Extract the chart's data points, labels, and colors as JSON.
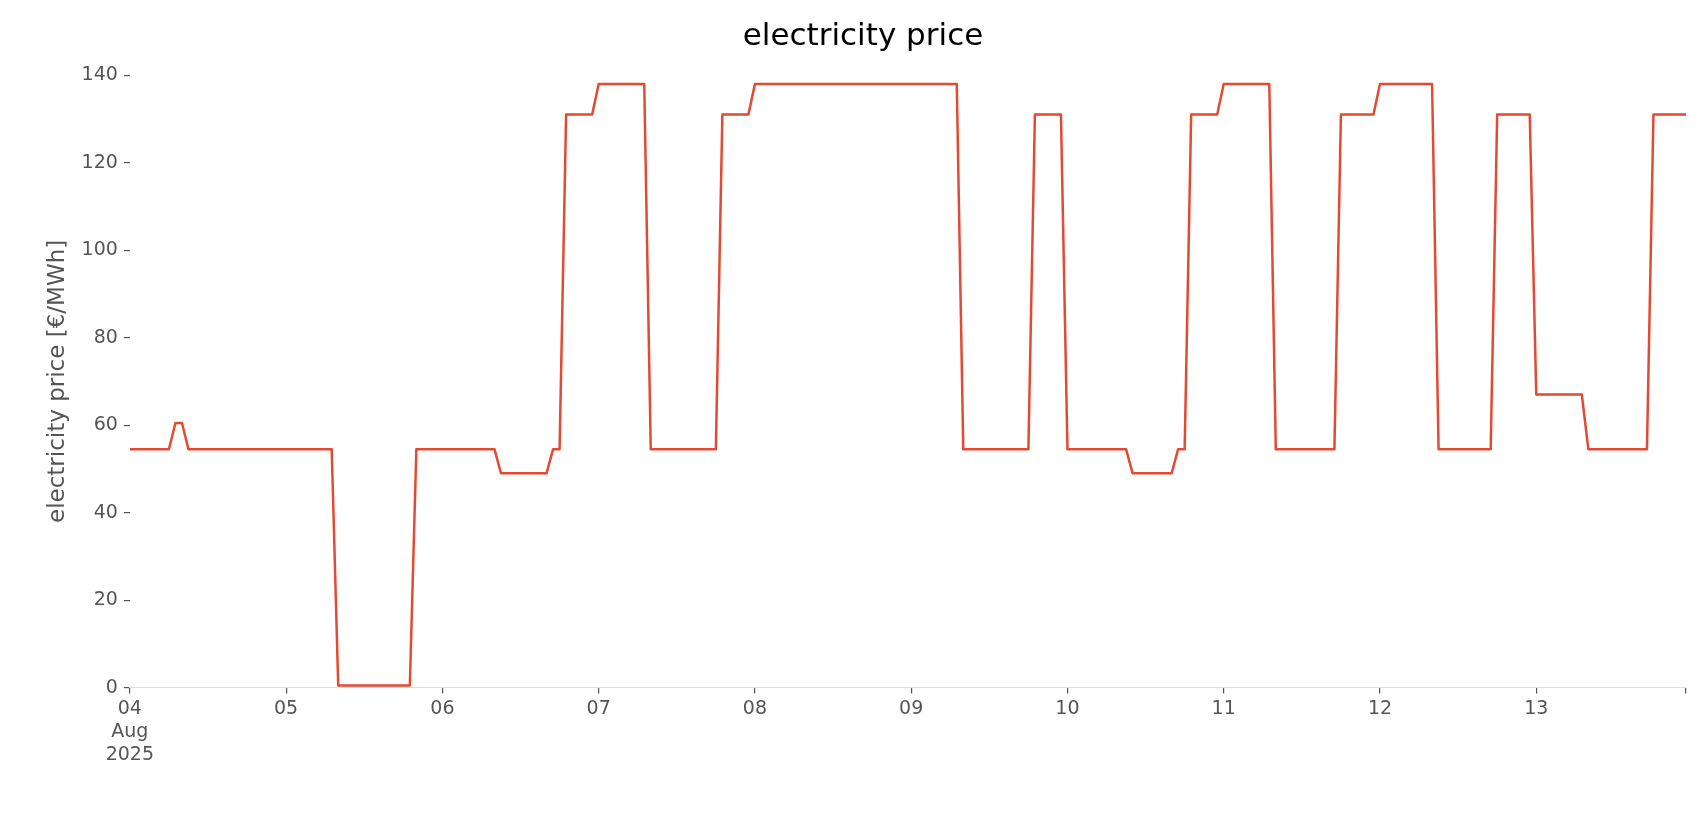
{
  "chart_data": {
    "type": "line",
    "title": "electricity price",
    "ylabel": "electricity price [€/MWh]",
    "x": [
      "2025-08-04T00:00",
      "2025-08-04T06:00",
      "2025-08-04T07:00",
      "2025-08-04T08:00",
      "2025-08-04T09:00",
      "2025-08-05T07:00",
      "2025-08-05T08:00",
      "2025-08-05T19:00",
      "2025-08-05T20:00",
      "2025-08-06T08:00",
      "2025-08-06T09:00",
      "2025-08-06T16:00",
      "2025-08-06T17:00",
      "2025-08-06T18:00",
      "2025-08-06T19:00",
      "2025-08-06T23:00",
      "2025-08-07T00:00",
      "2025-08-07T07:00",
      "2025-08-07T08:00",
      "2025-08-07T18:00",
      "2025-08-07T19:00",
      "2025-08-07T23:00",
      "2025-08-08T00:00",
      "2025-08-09T07:00",
      "2025-08-09T08:00",
      "2025-08-09T18:00",
      "2025-08-09T19:00",
      "2025-08-09T23:00",
      "2025-08-10T00:00",
      "2025-08-10T09:00",
      "2025-08-10T10:00",
      "2025-08-10T16:00",
      "2025-08-10T17:00",
      "2025-08-10T18:00",
      "2025-08-10T19:00",
      "2025-08-10T23:00",
      "2025-08-11T00:00",
      "2025-08-11T07:00",
      "2025-08-11T08:00",
      "2025-08-11T17:00",
      "2025-08-11T18:00",
      "2025-08-11T23:00",
      "2025-08-12T00:00",
      "2025-08-12T08:00",
      "2025-08-12T09:00",
      "2025-08-12T17:00",
      "2025-08-12T18:00",
      "2025-08-12T23:00",
      "2025-08-13T00:00",
      "2025-08-13T07:00",
      "2025-08-13T08:00",
      "2025-08-13T17:00",
      "2025-08-13T18:00",
      "2025-08-13T23:00"
    ],
    "series": [
      {
        "color": "#e24a33",
        "values": [
          54.5,
          54.5,
          60.5,
          60.5,
          54.5,
          54.5,
          0.5,
          0.5,
          54.5,
          54.5,
          49,
          49,
          54.5,
          54.5,
          131,
          131,
          138,
          138,
          54.5,
          54.5,
          131,
          131,
          138,
          138,
          54.5,
          54.5,
          131,
          131,
          54.5,
          54.5,
          49,
          49,
          54.5,
          54.5,
          131,
          131,
          138,
          138,
          54.5,
          54.5,
          131,
          131,
          138,
          138,
          54.5,
          54.5,
          131,
          131,
          67,
          67,
          54.5,
          54.5,
          131,
          131
        ]
      }
    ],
    "xticks": [
      {
        "value": "2025-08-04",
        "label": "04\nAug\n2025"
      },
      {
        "value": "2025-08-05",
        "label": "05"
      },
      {
        "value": "2025-08-06",
        "label": "06"
      },
      {
        "value": "2025-08-07",
        "label": "07"
      },
      {
        "value": "2025-08-08",
        "label": "08"
      },
      {
        "value": "2025-08-09",
        "label": "09"
      },
      {
        "value": "2025-08-10",
        "label": "10"
      },
      {
        "value": "2025-08-11",
        "label": "11"
      },
      {
        "value": "2025-08-12",
        "label": "12"
      },
      {
        "value": "2025-08-13",
        "label": "13"
      },
      {
        "value": "2025-08-13T23:00",
        "label": null
      }
    ],
    "xlim": [
      "2025-08-04T00:00",
      "2025-08-13T23:00"
    ],
    "ylim": [
      0,
      140
    ],
    "yticks": [
      0,
      20,
      40,
      60,
      80,
      100,
      120,
      140
    ],
    "legend": false
  }
}
